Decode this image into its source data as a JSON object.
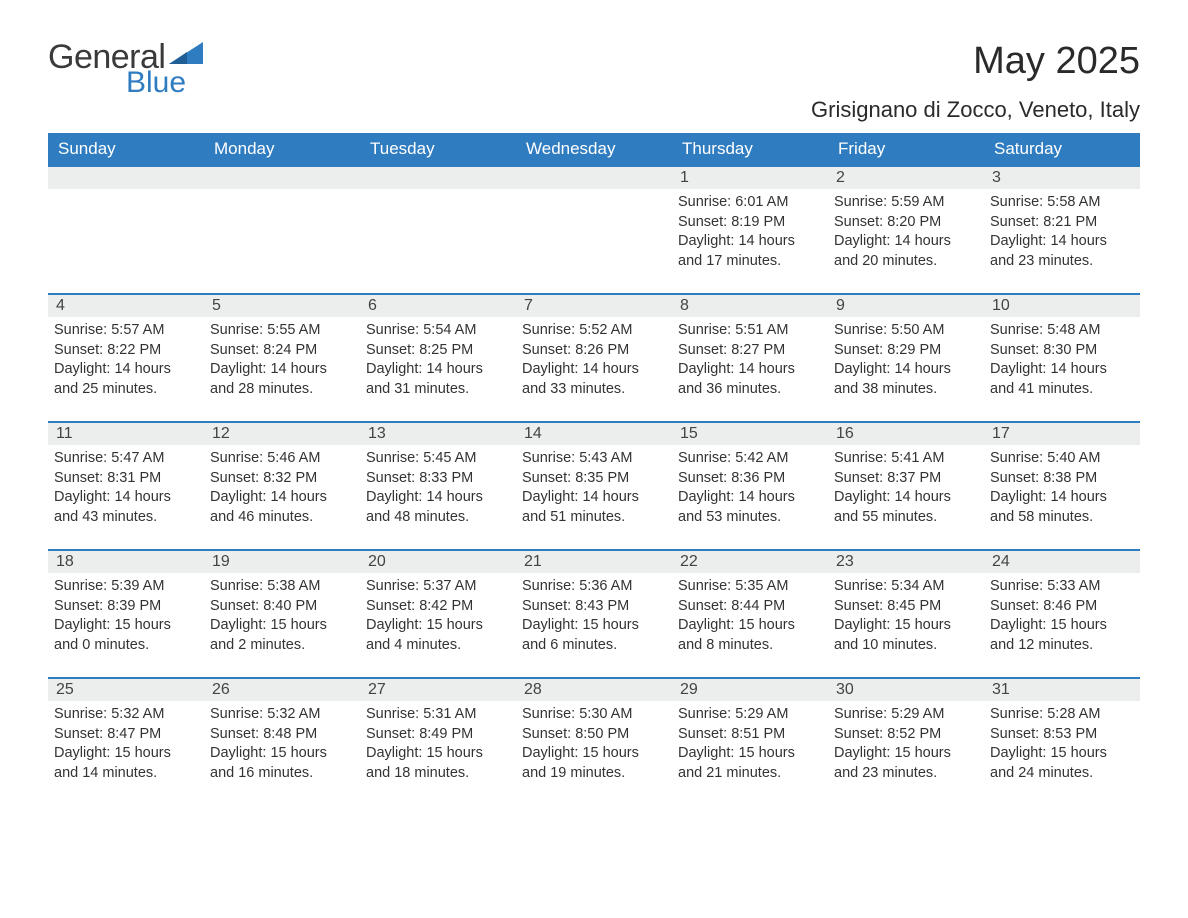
{
  "brand": {
    "word1": "General",
    "word2": "Blue"
  },
  "title": {
    "month_year": "May 2025",
    "location": "Grisignano di Zocco, Veneto, Italy"
  },
  "colors": {
    "header_bg": "#2f7dc0",
    "header_text": "#ffffff",
    "daynum_bg": "#eceded",
    "daynum_border_top": "#2f7dc0",
    "body_text": "#333333",
    "page_bg": "#ffffff",
    "logo_gray": "#3a3a3a",
    "logo_blue": "#2f7dc0"
  },
  "weekdays": [
    "Sunday",
    "Monday",
    "Tuesday",
    "Wednesday",
    "Thursday",
    "Friday",
    "Saturday"
  ],
  "weeks": [
    [
      null,
      null,
      null,
      null,
      {
        "n": "1",
        "sunrise": "Sunrise: 6:01 AM",
        "sunset": "Sunset: 8:19 PM",
        "daylight": "Daylight: 14 hours and 17 minutes."
      },
      {
        "n": "2",
        "sunrise": "Sunrise: 5:59 AM",
        "sunset": "Sunset: 8:20 PM",
        "daylight": "Daylight: 14 hours and 20 minutes."
      },
      {
        "n": "3",
        "sunrise": "Sunrise: 5:58 AM",
        "sunset": "Sunset: 8:21 PM",
        "daylight": "Daylight: 14 hours and 23 minutes."
      }
    ],
    [
      {
        "n": "4",
        "sunrise": "Sunrise: 5:57 AM",
        "sunset": "Sunset: 8:22 PM",
        "daylight": "Daylight: 14 hours and 25 minutes."
      },
      {
        "n": "5",
        "sunrise": "Sunrise: 5:55 AM",
        "sunset": "Sunset: 8:24 PM",
        "daylight": "Daylight: 14 hours and 28 minutes."
      },
      {
        "n": "6",
        "sunrise": "Sunrise: 5:54 AM",
        "sunset": "Sunset: 8:25 PM",
        "daylight": "Daylight: 14 hours and 31 minutes."
      },
      {
        "n": "7",
        "sunrise": "Sunrise: 5:52 AM",
        "sunset": "Sunset: 8:26 PM",
        "daylight": "Daylight: 14 hours and 33 minutes."
      },
      {
        "n": "8",
        "sunrise": "Sunrise: 5:51 AM",
        "sunset": "Sunset: 8:27 PM",
        "daylight": "Daylight: 14 hours and 36 minutes."
      },
      {
        "n": "9",
        "sunrise": "Sunrise: 5:50 AM",
        "sunset": "Sunset: 8:29 PM",
        "daylight": "Daylight: 14 hours and 38 minutes."
      },
      {
        "n": "10",
        "sunrise": "Sunrise: 5:48 AM",
        "sunset": "Sunset: 8:30 PM",
        "daylight": "Daylight: 14 hours and 41 minutes."
      }
    ],
    [
      {
        "n": "11",
        "sunrise": "Sunrise: 5:47 AM",
        "sunset": "Sunset: 8:31 PM",
        "daylight": "Daylight: 14 hours and 43 minutes."
      },
      {
        "n": "12",
        "sunrise": "Sunrise: 5:46 AM",
        "sunset": "Sunset: 8:32 PM",
        "daylight": "Daylight: 14 hours and 46 minutes."
      },
      {
        "n": "13",
        "sunrise": "Sunrise: 5:45 AM",
        "sunset": "Sunset: 8:33 PM",
        "daylight": "Daylight: 14 hours and 48 minutes."
      },
      {
        "n": "14",
        "sunrise": "Sunrise: 5:43 AM",
        "sunset": "Sunset: 8:35 PM",
        "daylight": "Daylight: 14 hours and 51 minutes."
      },
      {
        "n": "15",
        "sunrise": "Sunrise: 5:42 AM",
        "sunset": "Sunset: 8:36 PM",
        "daylight": "Daylight: 14 hours and 53 minutes."
      },
      {
        "n": "16",
        "sunrise": "Sunrise: 5:41 AM",
        "sunset": "Sunset: 8:37 PM",
        "daylight": "Daylight: 14 hours and 55 minutes."
      },
      {
        "n": "17",
        "sunrise": "Sunrise: 5:40 AM",
        "sunset": "Sunset: 8:38 PM",
        "daylight": "Daylight: 14 hours and 58 minutes."
      }
    ],
    [
      {
        "n": "18",
        "sunrise": "Sunrise: 5:39 AM",
        "sunset": "Sunset: 8:39 PM",
        "daylight": "Daylight: 15 hours and 0 minutes."
      },
      {
        "n": "19",
        "sunrise": "Sunrise: 5:38 AM",
        "sunset": "Sunset: 8:40 PM",
        "daylight": "Daylight: 15 hours and 2 minutes."
      },
      {
        "n": "20",
        "sunrise": "Sunrise: 5:37 AM",
        "sunset": "Sunset: 8:42 PM",
        "daylight": "Daylight: 15 hours and 4 minutes."
      },
      {
        "n": "21",
        "sunrise": "Sunrise: 5:36 AM",
        "sunset": "Sunset: 8:43 PM",
        "daylight": "Daylight: 15 hours and 6 minutes."
      },
      {
        "n": "22",
        "sunrise": "Sunrise: 5:35 AM",
        "sunset": "Sunset: 8:44 PM",
        "daylight": "Daylight: 15 hours and 8 minutes."
      },
      {
        "n": "23",
        "sunrise": "Sunrise: 5:34 AM",
        "sunset": "Sunset: 8:45 PM",
        "daylight": "Daylight: 15 hours and 10 minutes."
      },
      {
        "n": "24",
        "sunrise": "Sunrise: 5:33 AM",
        "sunset": "Sunset: 8:46 PM",
        "daylight": "Daylight: 15 hours and 12 minutes."
      }
    ],
    [
      {
        "n": "25",
        "sunrise": "Sunrise: 5:32 AM",
        "sunset": "Sunset: 8:47 PM",
        "daylight": "Daylight: 15 hours and 14 minutes."
      },
      {
        "n": "26",
        "sunrise": "Sunrise: 5:32 AM",
        "sunset": "Sunset: 8:48 PM",
        "daylight": "Daylight: 15 hours and 16 minutes."
      },
      {
        "n": "27",
        "sunrise": "Sunrise: 5:31 AM",
        "sunset": "Sunset: 8:49 PM",
        "daylight": "Daylight: 15 hours and 18 minutes."
      },
      {
        "n": "28",
        "sunrise": "Sunrise: 5:30 AM",
        "sunset": "Sunset: 8:50 PM",
        "daylight": "Daylight: 15 hours and 19 minutes."
      },
      {
        "n": "29",
        "sunrise": "Sunrise: 5:29 AM",
        "sunset": "Sunset: 8:51 PM",
        "daylight": "Daylight: 15 hours and 21 minutes."
      },
      {
        "n": "30",
        "sunrise": "Sunrise: 5:29 AM",
        "sunset": "Sunset: 8:52 PM",
        "daylight": "Daylight: 15 hours and 23 minutes."
      },
      {
        "n": "31",
        "sunrise": "Sunrise: 5:28 AM",
        "sunset": "Sunset: 8:53 PM",
        "daylight": "Daylight: 15 hours and 24 minutes."
      }
    ]
  ]
}
